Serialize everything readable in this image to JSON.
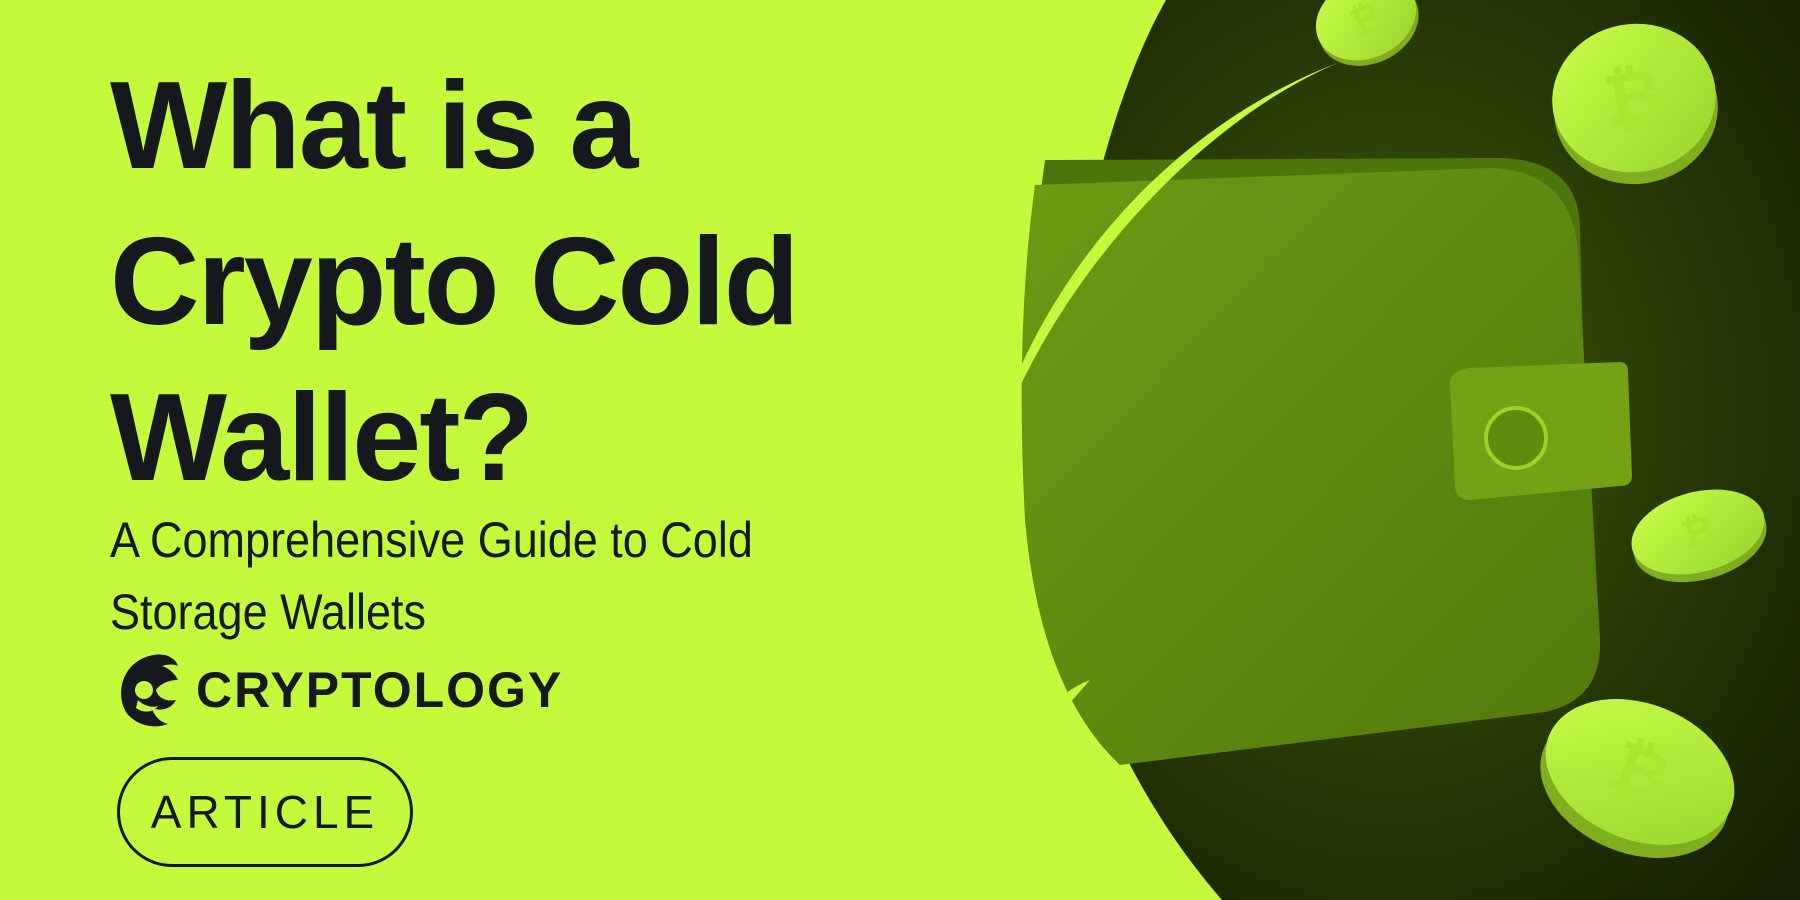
{
  "title_lines": [
    "What is a",
    "Crypto Cold",
    "Wallet?"
  ],
  "subtitle_lines": [
    "A Comprehensive Guide to Cold",
    "Storage Wallets"
  ],
  "brand": {
    "name": "CRYPTOLOGY",
    "logo_icon": "eagle-head-icon"
  },
  "tag": "ARTICLE",
  "colors": {
    "background": "#c3fb3c",
    "text": "#15191d",
    "dark_panel": "#1c2904",
    "wallet": "#5f8d0f",
    "coin": "#b4ef37"
  }
}
